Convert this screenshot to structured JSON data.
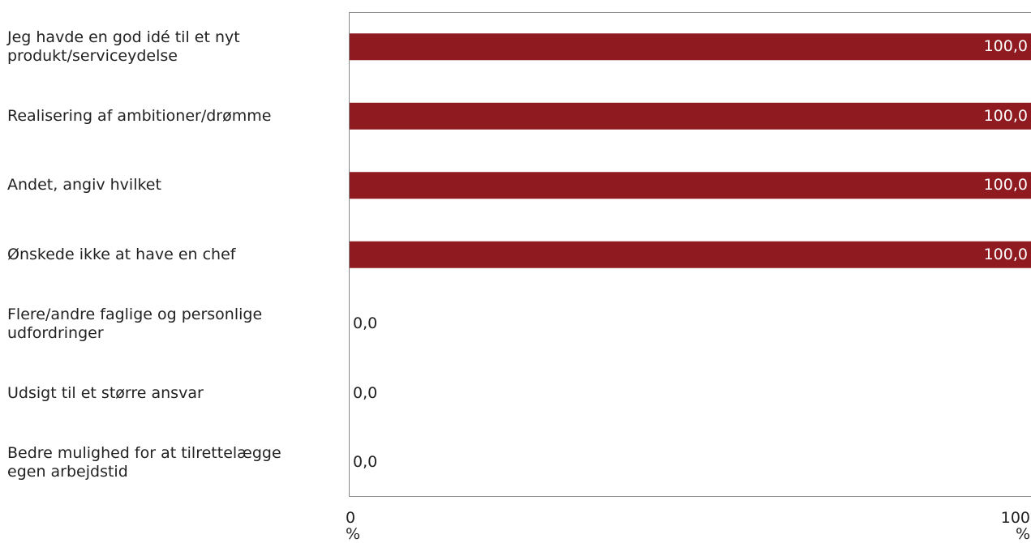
{
  "chart_data": {
    "type": "bar",
    "orientation": "horizontal",
    "categories": [
      "Jeg havde en god idé til et nyt produkt/serviceydelse",
      "Realisering af ambitioner/drømme",
      "Andet, angiv hvilket",
      "Ønskede ikke at have en chef",
      "Flere/andre faglige og personlige udfordringer",
      "Udsigt til et større ansvar",
      "Bedre mulighed for at tilrettelægge egen arbejdstid"
    ],
    "category_lines": [
      [
        "Jeg havde en god idé til et nyt",
        "produkt/serviceydelse"
      ],
      [
        "Realisering af ambitioner/drømme"
      ],
      [
        "Andet, angiv hvilket"
      ],
      [
        "Ønskede ikke at have en chef"
      ],
      [
        "Flere/andre faglige og personlige",
        "udfordringer"
      ],
      [
        "Udsigt til et større ansvar"
      ],
      [
        "Bedre mulighed for at tilrettelægge",
        "egen arbejdstid"
      ]
    ],
    "values": [
      100.0,
      100.0,
      100.0,
      100.0,
      0.0,
      0.0,
      0.0
    ],
    "value_labels": [
      "100,0",
      "100,0",
      "100,0",
      "100,0",
      "0,0",
      "0,0",
      "0,0"
    ],
    "xlim": [
      0,
      100
    ],
    "x_ticks": [
      {
        "value": 0,
        "label": "0",
        "unit": "%"
      },
      {
        "value": 100,
        "label": "100",
        "unit": "%"
      }
    ],
    "grid": false,
    "legend": "none",
    "bar_color": "#8f1a20"
  }
}
